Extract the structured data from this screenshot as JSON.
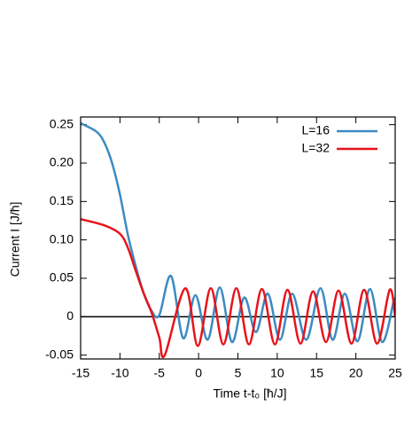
{
  "chart_data": {
    "type": "line",
    "xlabel": "Time t-t₀ [ħ/J]",
    "ylabel": "Current I [J/ħ]",
    "xlim": [
      -15,
      25
    ],
    "xticks": [
      -15,
      -10,
      -5,
      0,
      5,
      10,
      15,
      20,
      25
    ],
    "ylim": [
      -0.055,
      0.26
    ],
    "yticks": [
      -0.05,
      0,
      0.05,
      {
        "value": 0.1,
        "label": "0.10"
      },
      0.15,
      {
        "value": 0.2,
        "label": "0.20"
      },
      0.25
    ],
    "grid": false,
    "legend": "top right",
    "series": [
      {
        "name": "L=16",
        "color": "#3b8bc2",
        "x": [
          -15,
          -13,
          -12,
          -11,
          -10,
          -9,
          -8,
          -7,
          -6,
          -5,
          -3.5,
          -1.95,
          -0.4,
          1.15,
          2.7,
          4.25,
          5.8,
          7.3,
          8.8,
          10.35,
          11.9,
          13.7,
          15.5,
          17.05,
          18.6,
          20.2,
          21.8,
          23.35,
          24.9
        ],
        "values": [
          0.252,
          0.241,
          0.227,
          0.2,
          0.159,
          0.107,
          0.066,
          0.031,
          0.008,
          0.002,
          0.053,
          -0.028,
          0.028,
          -0.03,
          0.038,
          -0.033,
          0.025,
          -0.02,
          0.03,
          -0.03,
          0.03,
          -0.03,
          0.037,
          -0.03,
          0.03,
          -0.032,
          0.036,
          -0.033,
          0.025
        ]
      },
      {
        "name": "L=32",
        "color": "#e8131a",
        "x": [
          -15,
          -12,
          -10,
          -9,
          -8,
          -7,
          -6,
          -5,
          -4.3,
          -1.7,
          -0.1,
          1.55,
          3.15,
          4.8,
          6.4,
          8.05,
          9.7,
          11.3,
          12.95,
          14.55,
          16.2,
          17.8,
          19.45,
          21.05,
          22.7,
          24.3,
          25
        ],
        "values": [
          0.127,
          0.119,
          0.108,
          0.09,
          0.06,
          0.031,
          0.006,
          -0.027,
          -0.05,
          0.037,
          -0.038,
          0.037,
          -0.036,
          0.037,
          -0.036,
          0.036,
          -0.036,
          0.035,
          -0.035,
          0.033,
          -0.033,
          0.034,
          -0.035,
          0.035,
          -0.035,
          0.035,
          0.0
        ]
      }
    ]
  }
}
